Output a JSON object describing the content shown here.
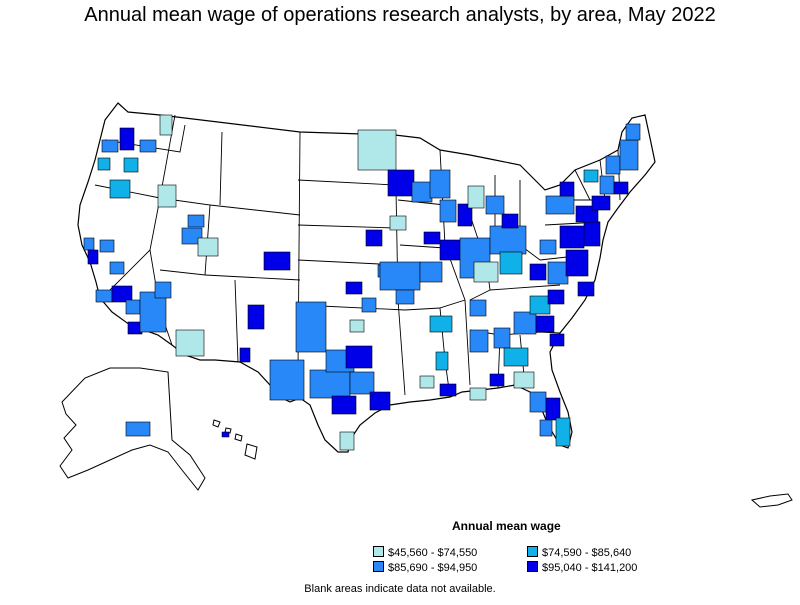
{
  "title": "Annual mean wage of operations research analysts, by area, May 2022",
  "legend": {
    "title": "Annual mean wage",
    "items": [
      {
        "label": "$45,560 - $74,550",
        "color": "#b0e8ea"
      },
      {
        "label": "$74,590 - $85,640",
        "color": "#10b0e8"
      },
      {
        "label": "$85,690 - $94,950",
        "color": "#2888f8"
      },
      {
        "label": "$95,040 - $141,200",
        "color": "#0000e8"
      }
    ]
  },
  "footnote": "Blank areas indicate data not available.",
  "colors": {
    "no_data": "#ffffff",
    "border": "#000000"
  }
}
